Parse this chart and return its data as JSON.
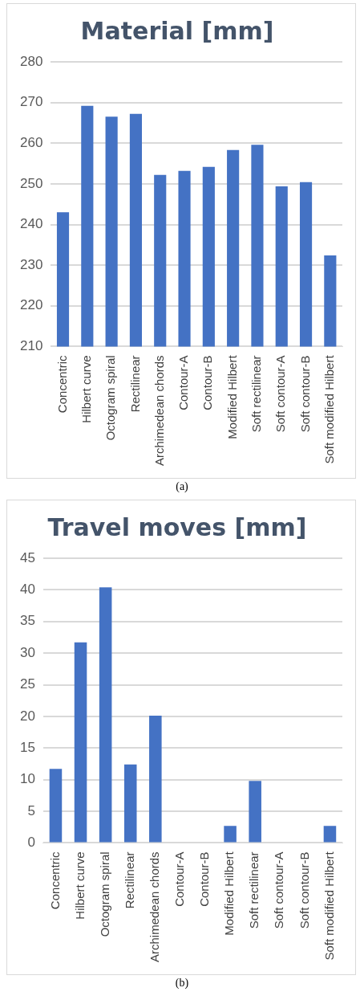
{
  "chart_data": [
    {
      "type": "bar",
      "title": "Material [mm]",
      "categories": [
        "Concentric",
        "Hilbert curve",
        "Octogram spiral",
        "Rectilinear",
        "Archimedean chords",
        "Contour-A",
        "Contour-B",
        "Modified Hilbert",
        "Soft rectilinear",
        "Soft contour-A",
        "Soft contour-B",
        "Soft modified Hilbert"
      ],
      "values": [
        243,
        269.2,
        266.5,
        267.2,
        252.2,
        253.2,
        254.2,
        258.3,
        259.6,
        249.4,
        250.4,
        232.4
      ],
      "color": "#4472c4",
      "ylim": [
        210,
        280
      ],
      "yticks": [
        210,
        220,
        230,
        240,
        250,
        260,
        270,
        280
      ],
      "grid": "y",
      "annotations": [
        "(a)"
      ]
    },
    {
      "type": "bar",
      "title": "Travel moves [mm]",
      "categories": [
        "Concentric",
        "Hilbert curve",
        "Octogram spiral",
        "Rectilinear",
        "Archimedean chords",
        "Contour-A",
        "Contour-B",
        "Modified Hilbert",
        "Soft rectilinear",
        "Soft contour-A",
        "Soft contour-B",
        "Soft modified Hilbert"
      ],
      "values": [
        11.7,
        31.7,
        40.4,
        12.4,
        20.1,
        0,
        0,
        2.7,
        9.8,
        0,
        0,
        2.7
      ],
      "color": "#4472c4",
      "ylim": [
        0,
        45
      ],
      "yticks": [
        0,
        5,
        10,
        15,
        20,
        25,
        30,
        35,
        40,
        45
      ],
      "grid": "y",
      "annotations": [
        "(b)"
      ]
    }
  ]
}
